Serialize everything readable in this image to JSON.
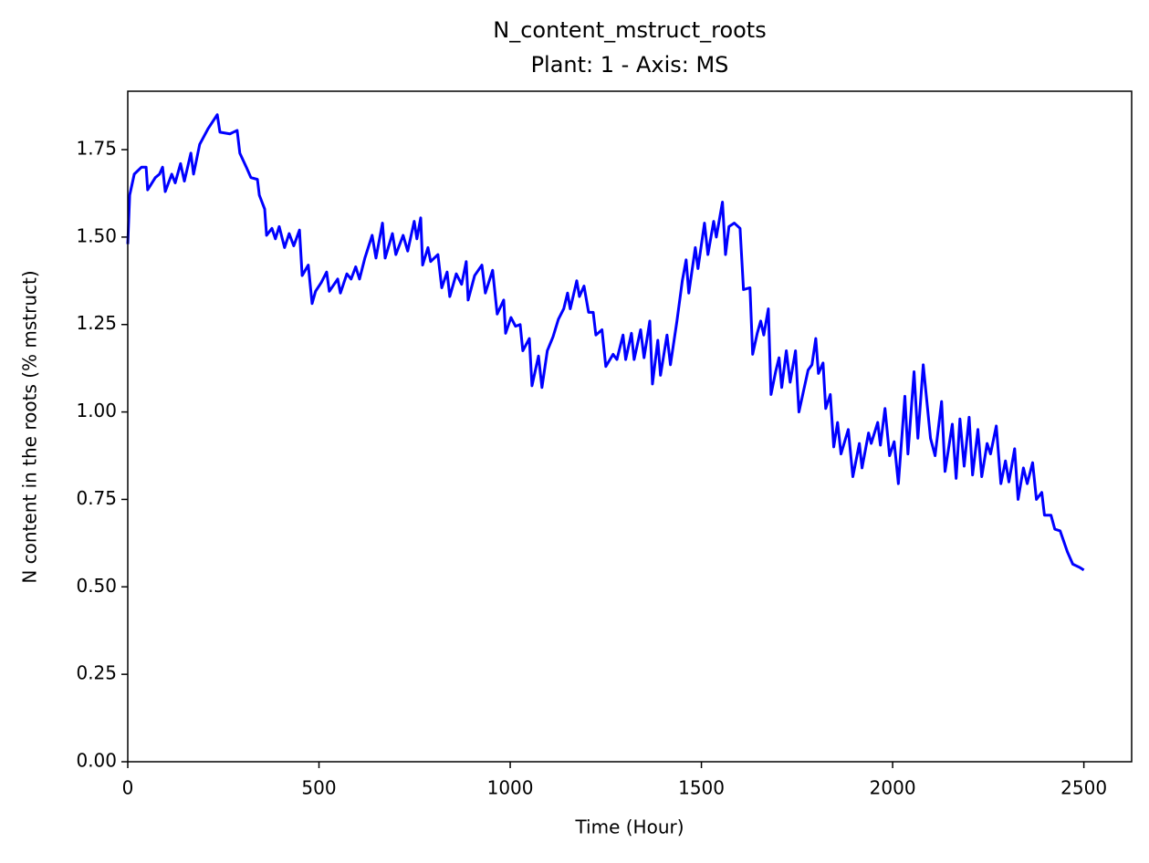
{
  "chart_data": {
    "type": "line",
    "title": "N_content_mstruct_roots",
    "subtitle": "Plant: 1 - Axis: MS",
    "xlabel": "Time (Hour)",
    "ylabel": "N content in the roots (% mstruct)",
    "xlim": [
      0,
      2625
    ],
    "ylim": [
      0,
      1.917
    ],
    "xticks": [
      0,
      500,
      1000,
      1500,
      2000,
      2500
    ],
    "yticks": [
      {
        "value": 0,
        "label": "0.00"
      },
      0.25,
      {
        "value": 0.5,
        "label": "0.50"
      },
      0.75,
      {
        "value": 1,
        "label": "1.00"
      },
      1.25,
      {
        "value": 1.5,
        "label": "1.50"
      },
      1.75
    ],
    "grid": false,
    "x": [
      0,
      5,
      17,
      36,
      48,
      52,
      72,
      83,
      91,
      98,
      115,
      124,
      138,
      148,
      165,
      172,
      188,
      210,
      234,
      241,
      267,
      286,
      293,
      310,
      322,
      339,
      344,
      358,
      363,
      377,
      386,
      396,
      410,
      422,
      434,
      449,
      456,
      472,
      482,
      491,
      506,
      520,
      527,
      549,
      556,
      573,
      584,
      596,
      606,
      620,
      639,
      649,
      666,
      673,
      692,
      701,
      720,
      732,
      749,
      756,
      766,
      771,
      785,
      792,
      811,
      821,
      835,
      842,
      859,
      873,
      885,
      890,
      907,
      926,
      935,
      954,
      966,
      983,
      988,
      1002,
      1014,
      1026,
      1033,
      1050,
      1057,
      1074,
      1083,
      1097,
      1112,
      1126,
      1140,
      1150,
      1157,
      1174,
      1181,
      1193,
      1205,
      1217,
      1224,
      1240,
      1250,
      1269,
      1279,
      1295,
      1302,
      1317,
      1324,
      1341,
      1350,
      1365,
      1372,
      1386,
      1393,
      1410,
      1419,
      1436,
      1450,
      1460,
      1467,
      1484,
      1491,
      1508,
      1517,
      1532,
      1539,
      1555,
      1563,
      1572,
      1586,
      1601,
      1610,
      1627,
      1634,
      1646,
      1655,
      1663,
      1675,
      1682,
      1694,
      1703,
      1710,
      1722,
      1732,
      1746,
      1755,
      1770,
      1779,
      1789,
      1799,
      1806,
      1818,
      1825,
      1837,
      1846,
      1856,
      1865,
      1884,
      1896,
      1913,
      1920,
      1937,
      1944,
      1961,
      1968,
      1980,
      1992,
      2004,
      2015,
      2032,
      2040,
      2056,
      2066,
      2080,
      2099,
      2111,
      2128,
      2137,
      2156,
      2166,
      2176,
      2187,
      2200,
      2209,
      2223,
      2233,
      2247,
      2256,
      2271,
      2283,
      2295,
      2304,
      2319,
      2328,
      2342,
      2352,
      2366,
      2376,
      2390,
      2397,
      2414,
      2424,
      2438,
      2457,
      2471,
      2490,
      2500
    ],
    "series": [
      {
        "name": "N_content_mstruct_roots",
        "color": "#0000ff",
        "values": [
          1.48,
          1.62,
          1.68,
          1.7,
          1.7,
          1.635,
          1.67,
          1.68,
          1.7,
          1.63,
          1.68,
          1.655,
          1.71,
          1.66,
          1.74,
          1.68,
          1.765,
          1.81,
          1.85,
          1.8,
          1.795,
          1.805,
          1.74,
          1.7,
          1.67,
          1.665,
          1.62,
          1.58,
          1.505,
          1.525,
          1.495,
          1.53,
          1.47,
          1.51,
          1.475,
          1.52,
          1.39,
          1.42,
          1.31,
          1.345,
          1.37,
          1.4,
          1.345,
          1.38,
          1.34,
          1.395,
          1.38,
          1.415,
          1.38,
          1.44,
          1.505,
          1.44,
          1.54,
          1.44,
          1.51,
          1.45,
          1.505,
          1.46,
          1.545,
          1.495,
          1.555,
          1.42,
          1.47,
          1.43,
          1.45,
          1.355,
          1.4,
          1.33,
          1.395,
          1.365,
          1.43,
          1.32,
          1.39,
          1.42,
          1.34,
          1.405,
          1.28,
          1.32,
          1.225,
          1.27,
          1.245,
          1.25,
          1.175,
          1.21,
          1.075,
          1.16,
          1.07,
          1.175,
          1.215,
          1.265,
          1.295,
          1.34,
          1.295,
          1.375,
          1.33,
          1.36,
          1.285,
          1.285,
          1.22,
          1.235,
          1.13,
          1.165,
          1.15,
          1.22,
          1.15,
          1.225,
          1.15,
          1.235,
          1.155,
          1.26,
          1.08,
          1.205,
          1.105,
          1.22,
          1.135,
          1.26,
          1.375,
          1.435,
          1.34,
          1.47,
          1.41,
          1.54,
          1.45,
          1.545,
          1.5,
          1.6,
          1.45,
          1.53,
          1.54,
          1.525,
          1.35,
          1.355,
          1.165,
          1.225,
          1.26,
          1.22,
          1.295,
          1.05,
          1.115,
          1.155,
          1.07,
          1.175,
          1.085,
          1.175,
          1.0,
          1.075,
          1.12,
          1.135,
          1.21,
          1.11,
          1.14,
          1.01,
          1.05,
          0.9,
          0.97,
          0.88,
          0.95,
          0.815,
          0.91,
          0.84,
          0.94,
          0.91,
          0.97,
          0.905,
          1.01,
          0.875,
          0.915,
          0.795,
          1.045,
          0.88,
          1.115,
          0.925,
          1.135,
          0.925,
          0.875,
          1.03,
          0.83,
          0.965,
          0.81,
          0.98,
          0.845,
          0.985,
          0.82,
          0.95,
          0.815,
          0.91,
          0.88,
          0.96,
          0.795,
          0.86,
          0.8,
          0.895,
          0.75,
          0.84,
          0.795,
          0.855,
          0.75,
          0.77,
          0.705,
          0.705,
          0.665,
          0.66,
          0.6,
          0.565,
          0.555,
          0.548
        ]
      }
    ]
  }
}
